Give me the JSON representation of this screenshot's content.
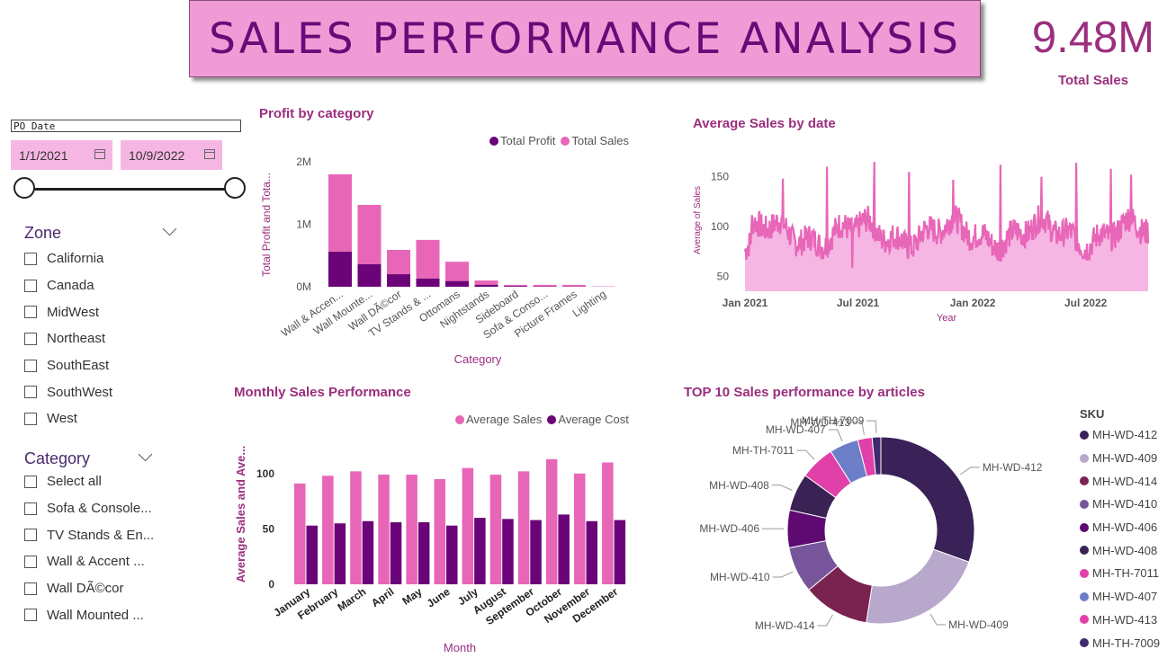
{
  "header": {
    "title": "SALES PERFORMANCE ANALYSIS"
  },
  "kpi": {
    "value": "9.48M",
    "label": "Total Sales"
  },
  "date_slicer": {
    "title": "PO Date",
    "start": "1/1/2021",
    "end": "10/9/2022",
    "icon": "calendar-icon",
    "range_fraction": [
      0,
      1
    ]
  },
  "zone_slicer": {
    "title": "Zone",
    "items": [
      "California",
      "Canada",
      "MidWest",
      "Northeast",
      "SouthEast",
      "SouthWest",
      "West"
    ]
  },
  "category_slicer": {
    "title": "Category",
    "items": [
      "Select all",
      "Sofa & Console...",
      "TV Stands & En...",
      "Wall & Accent ...",
      "Wall DÃ©cor",
      "Wall Mounted ..."
    ]
  },
  "colors": {
    "accent": "#9b2e7e",
    "pink": "#e866b8",
    "purple": "#6a0478",
    "light_pink": "#f6b6e3",
    "banner": "#f09bd6"
  },
  "chart_data": [
    {
      "id": "profit_by_category",
      "type": "bar",
      "title": "Profit by category",
      "xlabel": "Category",
      "ylabel": "Total Profit and Tota...",
      "ylim": [
        0,
        2000000
      ],
      "yticks": [
        "0M",
        "1M",
        "2M"
      ],
      "categories": [
        "Wall & Accen...",
        "Wall Mounte...",
        "Wall DÃ©cor",
        "TV Stands & ...",
        "Ottomans",
        "Nightstands",
        "Sideboard",
        "Sofa & Conso...",
        "Picture Frames",
        "Lighting"
      ],
      "series": [
        {
          "name": "Total Profit",
          "color": "#6a0478",
          "values": [
            560000,
            360000,
            200000,
            130000,
            90000,
            30000,
            10000,
            5000,
            3000,
            1000
          ]
        },
        {
          "name": "Total Sales",
          "color": "#e866b8",
          "values": [
            1800000,
            1310000,
            590000,
            750000,
            400000,
            100000,
            30000,
            30000,
            30000,
            5000
          ]
        }
      ],
      "legend": "top-right"
    },
    {
      "id": "average_sales_by_date",
      "type": "area",
      "title": "Average Sales by date",
      "xlabel": "Year",
      "ylabel": "Average of Sales",
      "ylim": [
        35,
        165
      ],
      "yticks": [
        "50",
        "100",
        "150"
      ],
      "xticks": [
        "Jan 2021",
        "Jul 2021",
        "Jan 2022",
        "Jul 2022"
      ],
      "x_range": [
        "2021-01-01",
        "2022-10-09"
      ],
      "baseline_approx": 93,
      "spike_max": 165,
      "dip_min": 58,
      "color": "#e866b8"
    },
    {
      "id": "monthly_sales_performance",
      "type": "bar",
      "title": "Monthly Sales Performance",
      "xlabel": "Month",
      "ylabel": "Average Sales and Ave...",
      "ylim": [
        0,
        125
      ],
      "yticks": [
        "0",
        "50",
        "100"
      ],
      "categories": [
        "January",
        "February",
        "March",
        "April",
        "May",
        "June",
        "July",
        "August",
        "September",
        "October",
        "November",
        "December"
      ],
      "series": [
        {
          "name": "Average Sales",
          "color": "#e866b8",
          "values": [
            91,
            98,
            102,
            99,
            99,
            95,
            105,
            99,
            102,
            113,
            100,
            110
          ]
        },
        {
          "name": "Average Cost",
          "color": "#6a0478",
          "values": [
            53,
            55,
            57,
            56,
            56,
            53,
            60,
            59,
            58,
            63,
            57,
            58
          ]
        }
      ],
      "legend": "top-right"
    },
    {
      "id": "top10_sales_by_articles",
      "type": "pie",
      "title": "TOP 10 Sales performance by articles",
      "legend_title": "SKU",
      "slices": [
        {
          "label": "MH-WD-412",
          "value": 30.5,
          "color": "#3a2258"
        },
        {
          "label": "MH-WD-409",
          "value": 22.0,
          "color": "#b8a8cc"
        },
        {
          "label": "MH-WD-414",
          "value": 11.5,
          "color": "#7a2250"
        },
        {
          "label": "MH-WD-410",
          "value": 8.0,
          "color": "#76559a"
        },
        {
          "label": "MH-WD-406",
          "value": 6.5,
          "color": "#5e0a70"
        },
        {
          "label": "MH-WD-408",
          "value": 6.5,
          "color": "#3a2254"
        },
        {
          "label": "MH-TH-7011",
          "value": 6.0,
          "color": "#e040a8"
        },
        {
          "label": "MH-WD-407",
          "value": 5.0,
          "color": "#6c7ec8"
        },
        {
          "label": "MH-WD-413",
          "value": 2.5,
          "color": "#e040a8"
        },
        {
          "label": "MH-TH-7009",
          "value": 1.5,
          "color": "#3e2a6c"
        }
      ],
      "legend": "right"
    }
  ]
}
